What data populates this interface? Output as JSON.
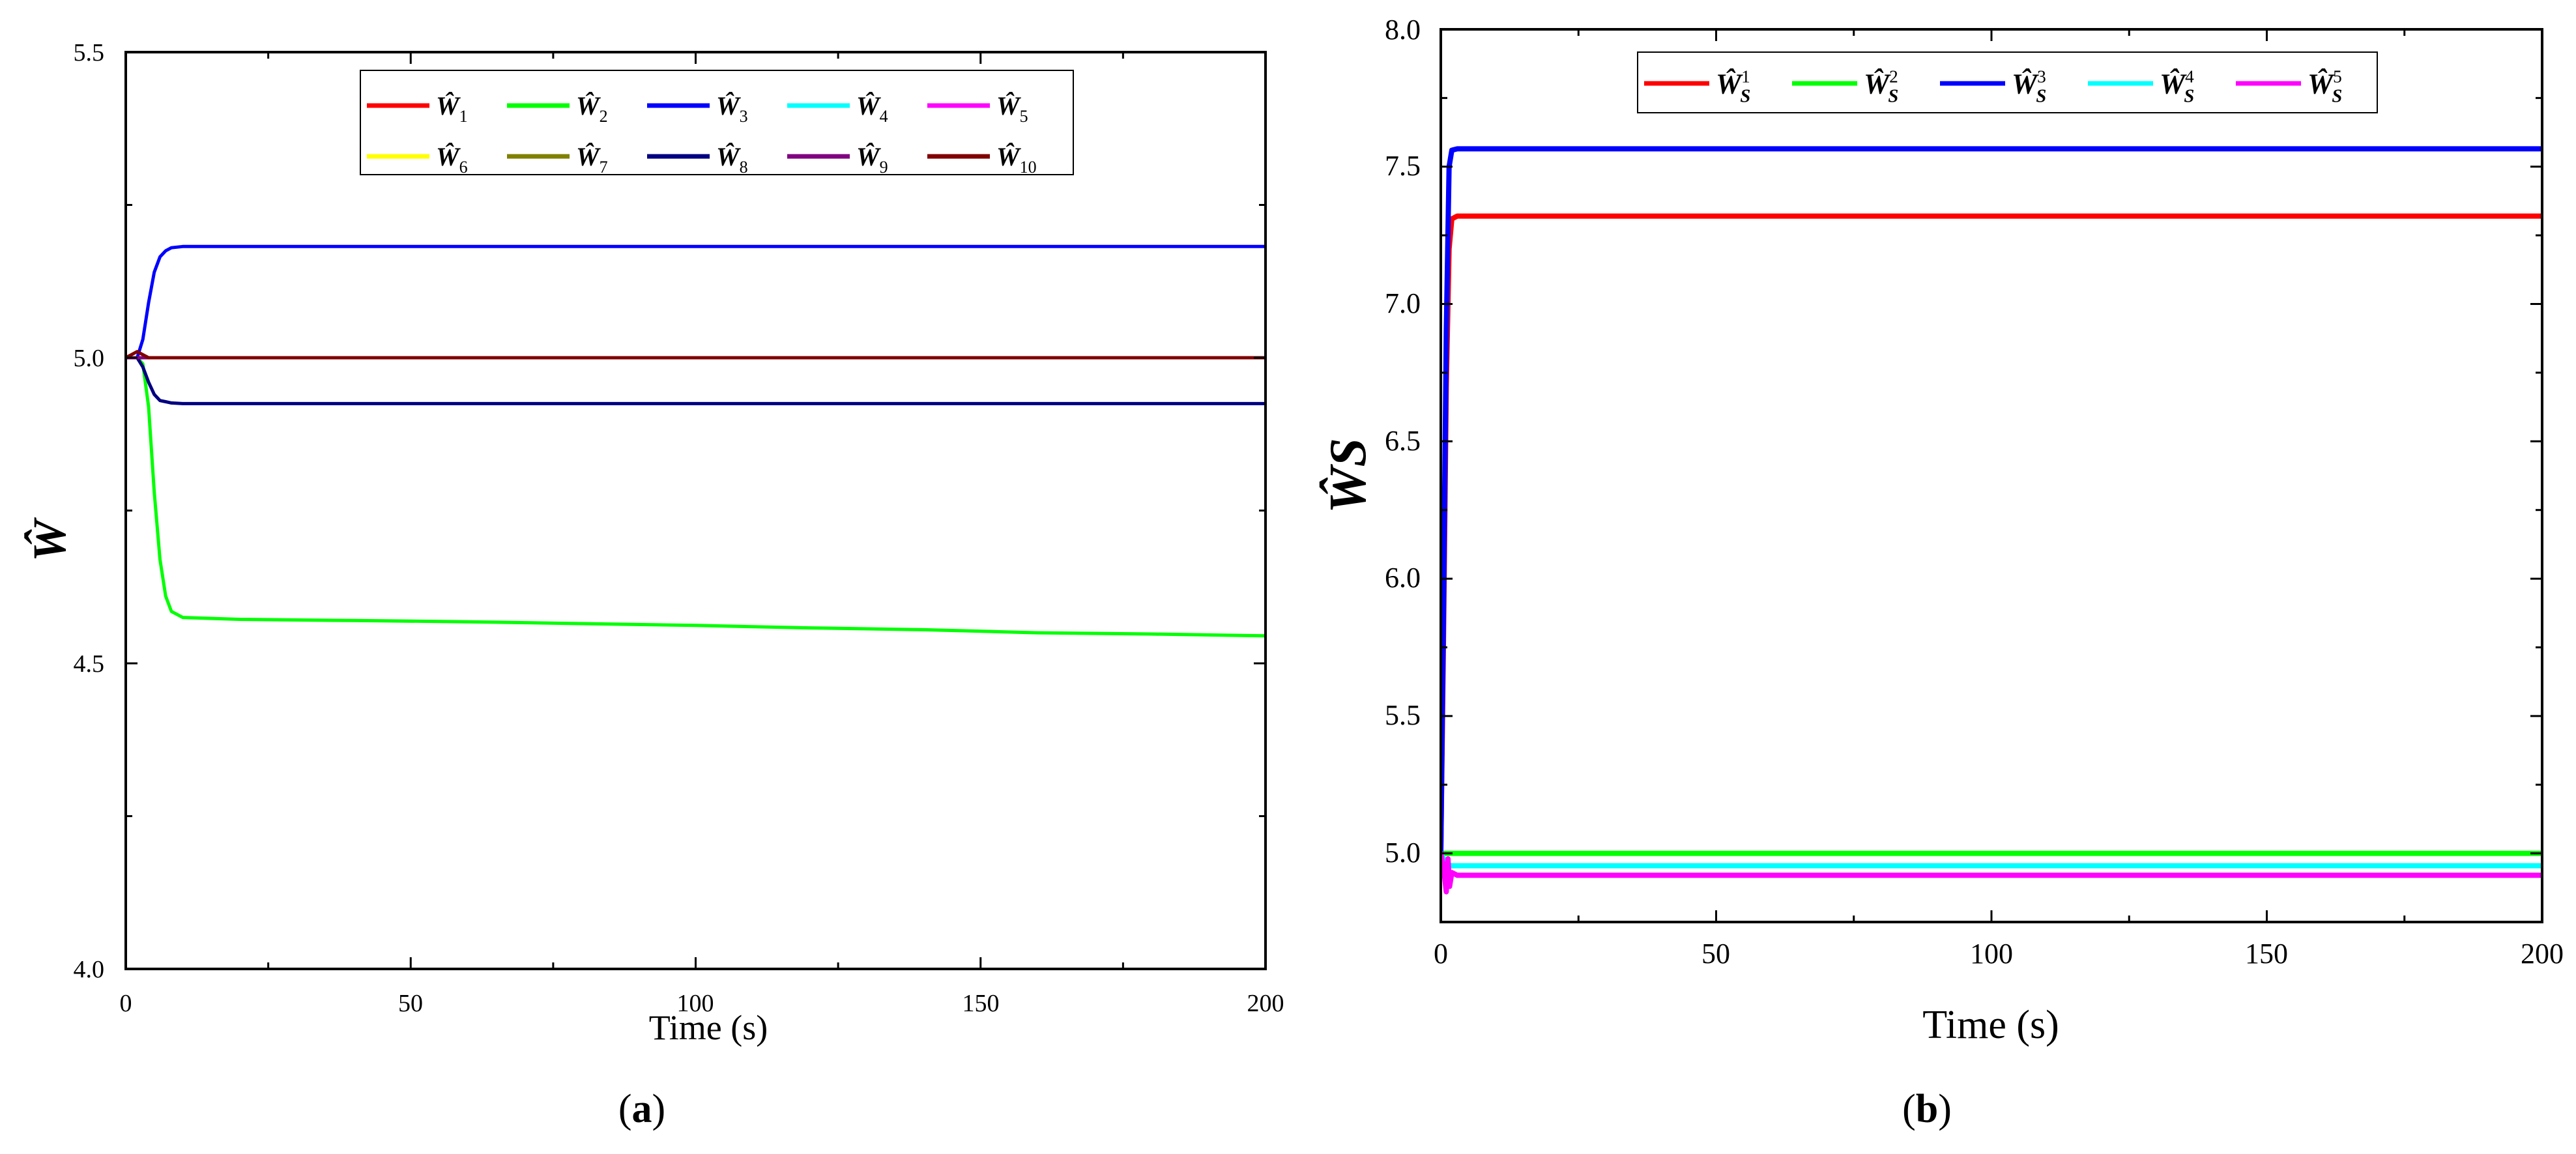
{
  "chart_data": [
    {
      "type": "line",
      "panel_label": "a",
      "xlabel": "Time (s)",
      "ylabel": "Ŵ",
      "xlim": [
        0,
        200
      ],
      "ylim": [
        4.0,
        5.5
      ],
      "xticks": [
        0,
        50,
        100,
        150,
        200
      ],
      "xtick_labels": [
        "0",
        "50",
        "100",
        "150",
        "200"
      ],
      "yticks": [
        4.0,
        4.5,
        5.0,
        5.5
      ],
      "ytick_labels": [
        "4.0",
        "4.5",
        "5.0",
        "5.5"
      ],
      "legend_position": "top-center",
      "legend_columns": 5,
      "series": [
        {
          "name": "Ŵ",
          "sub": "1",
          "sup": "",
          "color": "#ff0000",
          "x": [
            0,
            4,
            200
          ],
          "y": [
            5.0,
            5.0,
            5.0
          ]
        },
        {
          "name": "Ŵ",
          "sub": "2",
          "sup": "",
          "color": "#00ff00",
          "x": [
            0,
            2,
            3,
            4,
            5,
            6,
            7,
            8,
            10,
            20,
            40,
            60,
            80,
            100,
            120,
            140,
            160,
            180,
            200
          ],
          "y": [
            5.0,
            5.0,
            4.99,
            4.92,
            4.78,
            4.67,
            4.61,
            4.585,
            4.575,
            4.572,
            4.57,
            4.568,
            4.565,
            4.562,
            4.558,
            4.555,
            4.55,
            4.548,
            4.545
          ]
        },
        {
          "name": "Ŵ",
          "sub": "3",
          "sup": "",
          "color": "#0000ff",
          "x": [
            0,
            2,
            3,
            4,
            5,
            6,
            7,
            8,
            10,
            200
          ],
          "y": [
            5.0,
            5.0,
            5.03,
            5.09,
            5.14,
            5.165,
            5.175,
            5.18,
            5.182,
            5.182
          ]
        },
        {
          "name": "Ŵ",
          "sub": "4",
          "sup": "",
          "color": "#00ffff",
          "x": [
            0,
            200
          ],
          "y": [
            5.0,
            5.0
          ]
        },
        {
          "name": "Ŵ",
          "sub": "5",
          "sup": "",
          "color": "#ff00ff",
          "x": [
            0,
            200
          ],
          "y": [
            5.0,
            5.0
          ]
        },
        {
          "name": "Ŵ",
          "sub": "6",
          "sup": "",
          "color": "#ffff00",
          "x": [
            0,
            200
          ],
          "y": [
            5.0,
            5.0
          ]
        },
        {
          "name": "Ŵ",
          "sub": "7",
          "sup": "",
          "color": "#808000",
          "x": [
            0,
            200
          ],
          "y": [
            5.0,
            5.0
          ]
        },
        {
          "name": "Ŵ",
          "sub": "8",
          "sup": "",
          "color": "#000080",
          "x": [
            0,
            2,
            3,
            4,
            5,
            6,
            7,
            8,
            10,
            200
          ],
          "y": [
            5.0,
            5.0,
            4.985,
            4.96,
            4.94,
            4.93,
            4.928,
            4.926,
            4.925,
            4.925
          ]
        },
        {
          "name": "Ŵ",
          "sub": "9",
          "sup": "",
          "color": "#800080",
          "x": [
            0,
            200
          ],
          "y": [
            5.0,
            5.0
          ]
        },
        {
          "name": "Ŵ",
          "sub": "10",
          "sup": "",
          "color": "#800000",
          "x": [
            0,
            1,
            2,
            3,
            4,
            5,
            6,
            200
          ],
          "y": [
            5.0,
            5.005,
            5.01,
            5.005,
            5.0,
            5.0,
            5.0,
            5.0
          ]
        }
      ]
    },
    {
      "type": "line",
      "panel_label": "b",
      "xlabel": "Time (s)",
      "ylabel": "ŴS",
      "xlim": [
        0,
        200
      ],
      "ylim": [
        4.75,
        8.0
      ],
      "xticks": [
        0,
        50,
        100,
        150,
        200
      ],
      "xtick_labels": [
        "0",
        "50",
        "100",
        "150",
        "200"
      ],
      "yticks": [
        5.0,
        5.5,
        6.0,
        6.5,
        7.0,
        7.5,
        8.0
      ],
      "ytick_labels": [
        "5.0",
        "5.5",
        "6.0",
        "6.5",
        "7.0",
        "7.5",
        "8.0"
      ],
      "legend_position": "top-center",
      "legend_columns": 5,
      "series": [
        {
          "name": "Ŵ",
          "sub": "S",
          "sup": "1",
          "color": "#ff0000",
          "x": [
            0,
            0.5,
            1,
            1.5,
            2,
            3,
            200
          ],
          "y": [
            5.0,
            5.8,
            6.7,
            7.2,
            7.31,
            7.32,
            7.32
          ]
        },
        {
          "name": "Ŵ",
          "sub": "S",
          "sup": "2",
          "color": "#00ff00",
          "x": [
            0,
            200
          ],
          "y": [
            5.0,
            5.0
          ]
        },
        {
          "name": "Ŵ",
          "sub": "S",
          "sup": "3",
          "color": "#0000ff",
          "x": [
            0,
            0.5,
            1,
            1.5,
            2,
            3,
            200
          ],
          "y": [
            5.0,
            5.9,
            6.9,
            7.5,
            7.56,
            7.565,
            7.565
          ]
        },
        {
          "name": "Ŵ",
          "sub": "S",
          "sup": "4",
          "color": "#00ffff",
          "x": [
            0,
            0.5,
            1,
            2,
            200
          ],
          "y": [
            5.0,
            4.98,
            4.96,
            4.955,
            4.955
          ]
        },
        {
          "name": "Ŵ",
          "sub": "S",
          "sup": "5",
          "color": "#ff00ff",
          "x": [
            0,
            0.5,
            1,
            1.3,
            1.6,
            2,
            3,
            200
          ],
          "y": [
            5.0,
            4.95,
            4.86,
            4.98,
            4.88,
            4.93,
            4.92,
            4.92
          ]
        }
      ]
    }
  ]
}
